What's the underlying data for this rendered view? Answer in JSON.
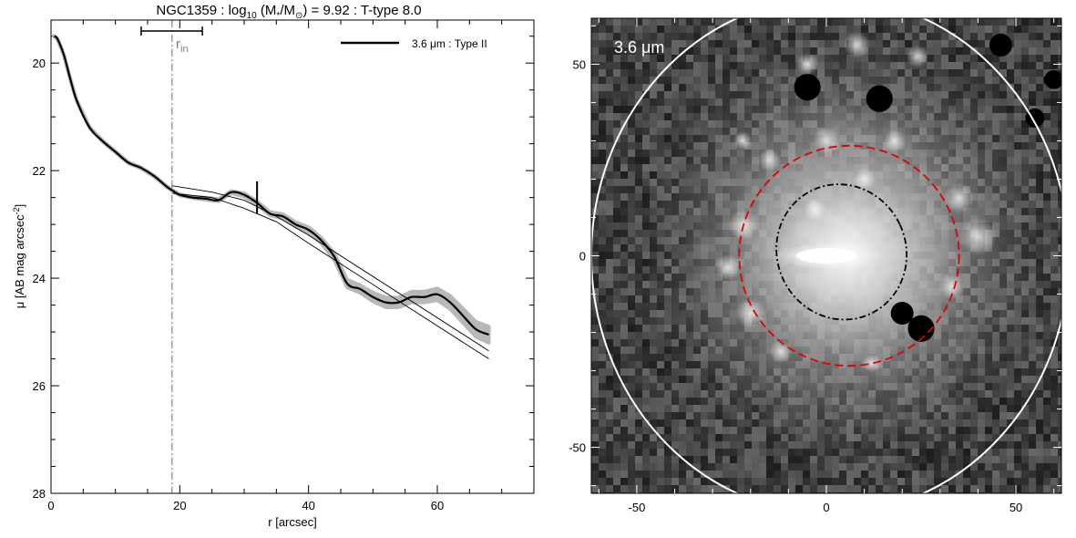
{
  "chart_data": [
    {
      "type": "line",
      "title": {
        "prefix": "NGC1359 : log",
        "sub": "10",
        "middle": " (M",
        "star": "*",
        "slash": "/M",
        "sun": "⊙",
        "suffix": ") = 9.92 : T-type 8.0"
      },
      "xlabel": "r [arcsec]",
      "ylabel": {
        "prefix": "μ [AB mag arcsec",
        "sup": "-2",
        "suffix": "]"
      },
      "xlim": [
        0,
        75
      ],
      "ylim": [
        28,
        19.2
      ],
      "y_inverted": true,
      "x_ticks": [
        0,
        20,
        40,
        60
      ],
      "y_ticks": [
        20,
        22,
        24,
        26,
        28
      ],
      "legend": {
        "label": "3.6 μm : Type II",
        "position": "top-right"
      },
      "r_in": {
        "label_main": "r",
        "label_sub": "in",
        "value": 18.8,
        "range": [
          14,
          23.5
        ]
      },
      "break_marker": {
        "x": 32,
        "y_range": [
          22.2,
          22.8
        ]
      },
      "series": [
        {
          "name": "3.6 μm : Type II",
          "x": [
            0.5,
            1,
            2,
            3,
            4,
            6,
            8,
            10,
            12,
            14,
            16,
            18,
            19,
            20,
            22,
            24,
            26,
            28,
            30,
            32,
            34,
            36,
            38,
            40,
            42,
            44,
            46,
            48,
            50,
            52,
            54,
            56,
            58,
            60,
            62,
            64,
            66,
            68
          ],
          "y": [
            19.5,
            19.55,
            19.85,
            20.3,
            20.7,
            21.2,
            21.45,
            21.65,
            21.85,
            21.95,
            22.1,
            22.3,
            22.38,
            22.45,
            22.5,
            22.52,
            22.55,
            22.4,
            22.45,
            22.6,
            22.8,
            22.85,
            23.0,
            23.1,
            23.3,
            23.6,
            24.1,
            24.2,
            24.35,
            24.45,
            24.45,
            24.35,
            24.35,
            24.3,
            24.45,
            24.7,
            24.95,
            25.05
          ],
          "band_halfwidth": [
            0.01,
            0.01,
            0.01,
            0.01,
            0.01,
            0.01,
            0.01,
            0.01,
            0.01,
            0.01,
            0.01,
            0.01,
            0.01,
            0.01,
            0.01,
            0.02,
            0.02,
            0.02,
            0.03,
            0.03,
            0.03,
            0.04,
            0.04,
            0.05,
            0.05,
            0.06,
            0.07,
            0.07,
            0.08,
            0.09,
            0.09,
            0.1,
            0.1,
            0.11,
            0.12,
            0.13,
            0.14,
            0.15
          ]
        }
      ],
      "fit_lines": [
        {
          "x": [
            18.8,
            25,
            30,
            35,
            40,
            68
          ],
          "y": [
            22.28,
            22.4,
            22.55,
            22.85,
            23.2,
            25.35
          ]
        },
        {
          "x": [
            18.8,
            25,
            30,
            35,
            40,
            68
          ],
          "y": [
            22.42,
            22.5,
            22.7,
            22.95,
            23.35,
            25.5
          ]
        }
      ]
    },
    {
      "type": "heatmap",
      "label": "3.6 μm",
      "xlim": [
        -62,
        62
      ],
      "ylim": [
        -62,
        62
      ],
      "x_ticks": [
        -50,
        0,
        50
      ],
      "y_ticks": [
        -50,
        0,
        50
      ],
      "ellipses": [
        {
          "style": "solid",
          "color": "#ffffff",
          "cx": 1,
          "cy": 0,
          "rx": 63,
          "ry": 68,
          "rot": 0
        },
        {
          "style": "dashed",
          "color": "#e00000",
          "cx": 6,
          "cy": 0,
          "rx": 29,
          "ry": 29,
          "rot": 0
        },
        {
          "style": "dashdot",
          "color": "#000000",
          "cx": 4,
          "cy": 1,
          "rx": 17,
          "ry": 18,
          "rot": 25
        }
      ],
      "masks": [
        {
          "x": -5,
          "y": 44,
          "r": 3.5
        },
        {
          "x": 14,
          "y": 41,
          "r": 3.5
        },
        {
          "x": 20,
          "y": -15,
          "r": 3
        },
        {
          "x": 25,
          "y": -19,
          "r": 3.5
        },
        {
          "x": 46,
          "y": 55,
          "r": 3
        },
        {
          "x": 55,
          "y": 36,
          "r": 2.5
        },
        {
          "x": 60,
          "y": 46,
          "r": 2.5
        }
      ]
    }
  ]
}
